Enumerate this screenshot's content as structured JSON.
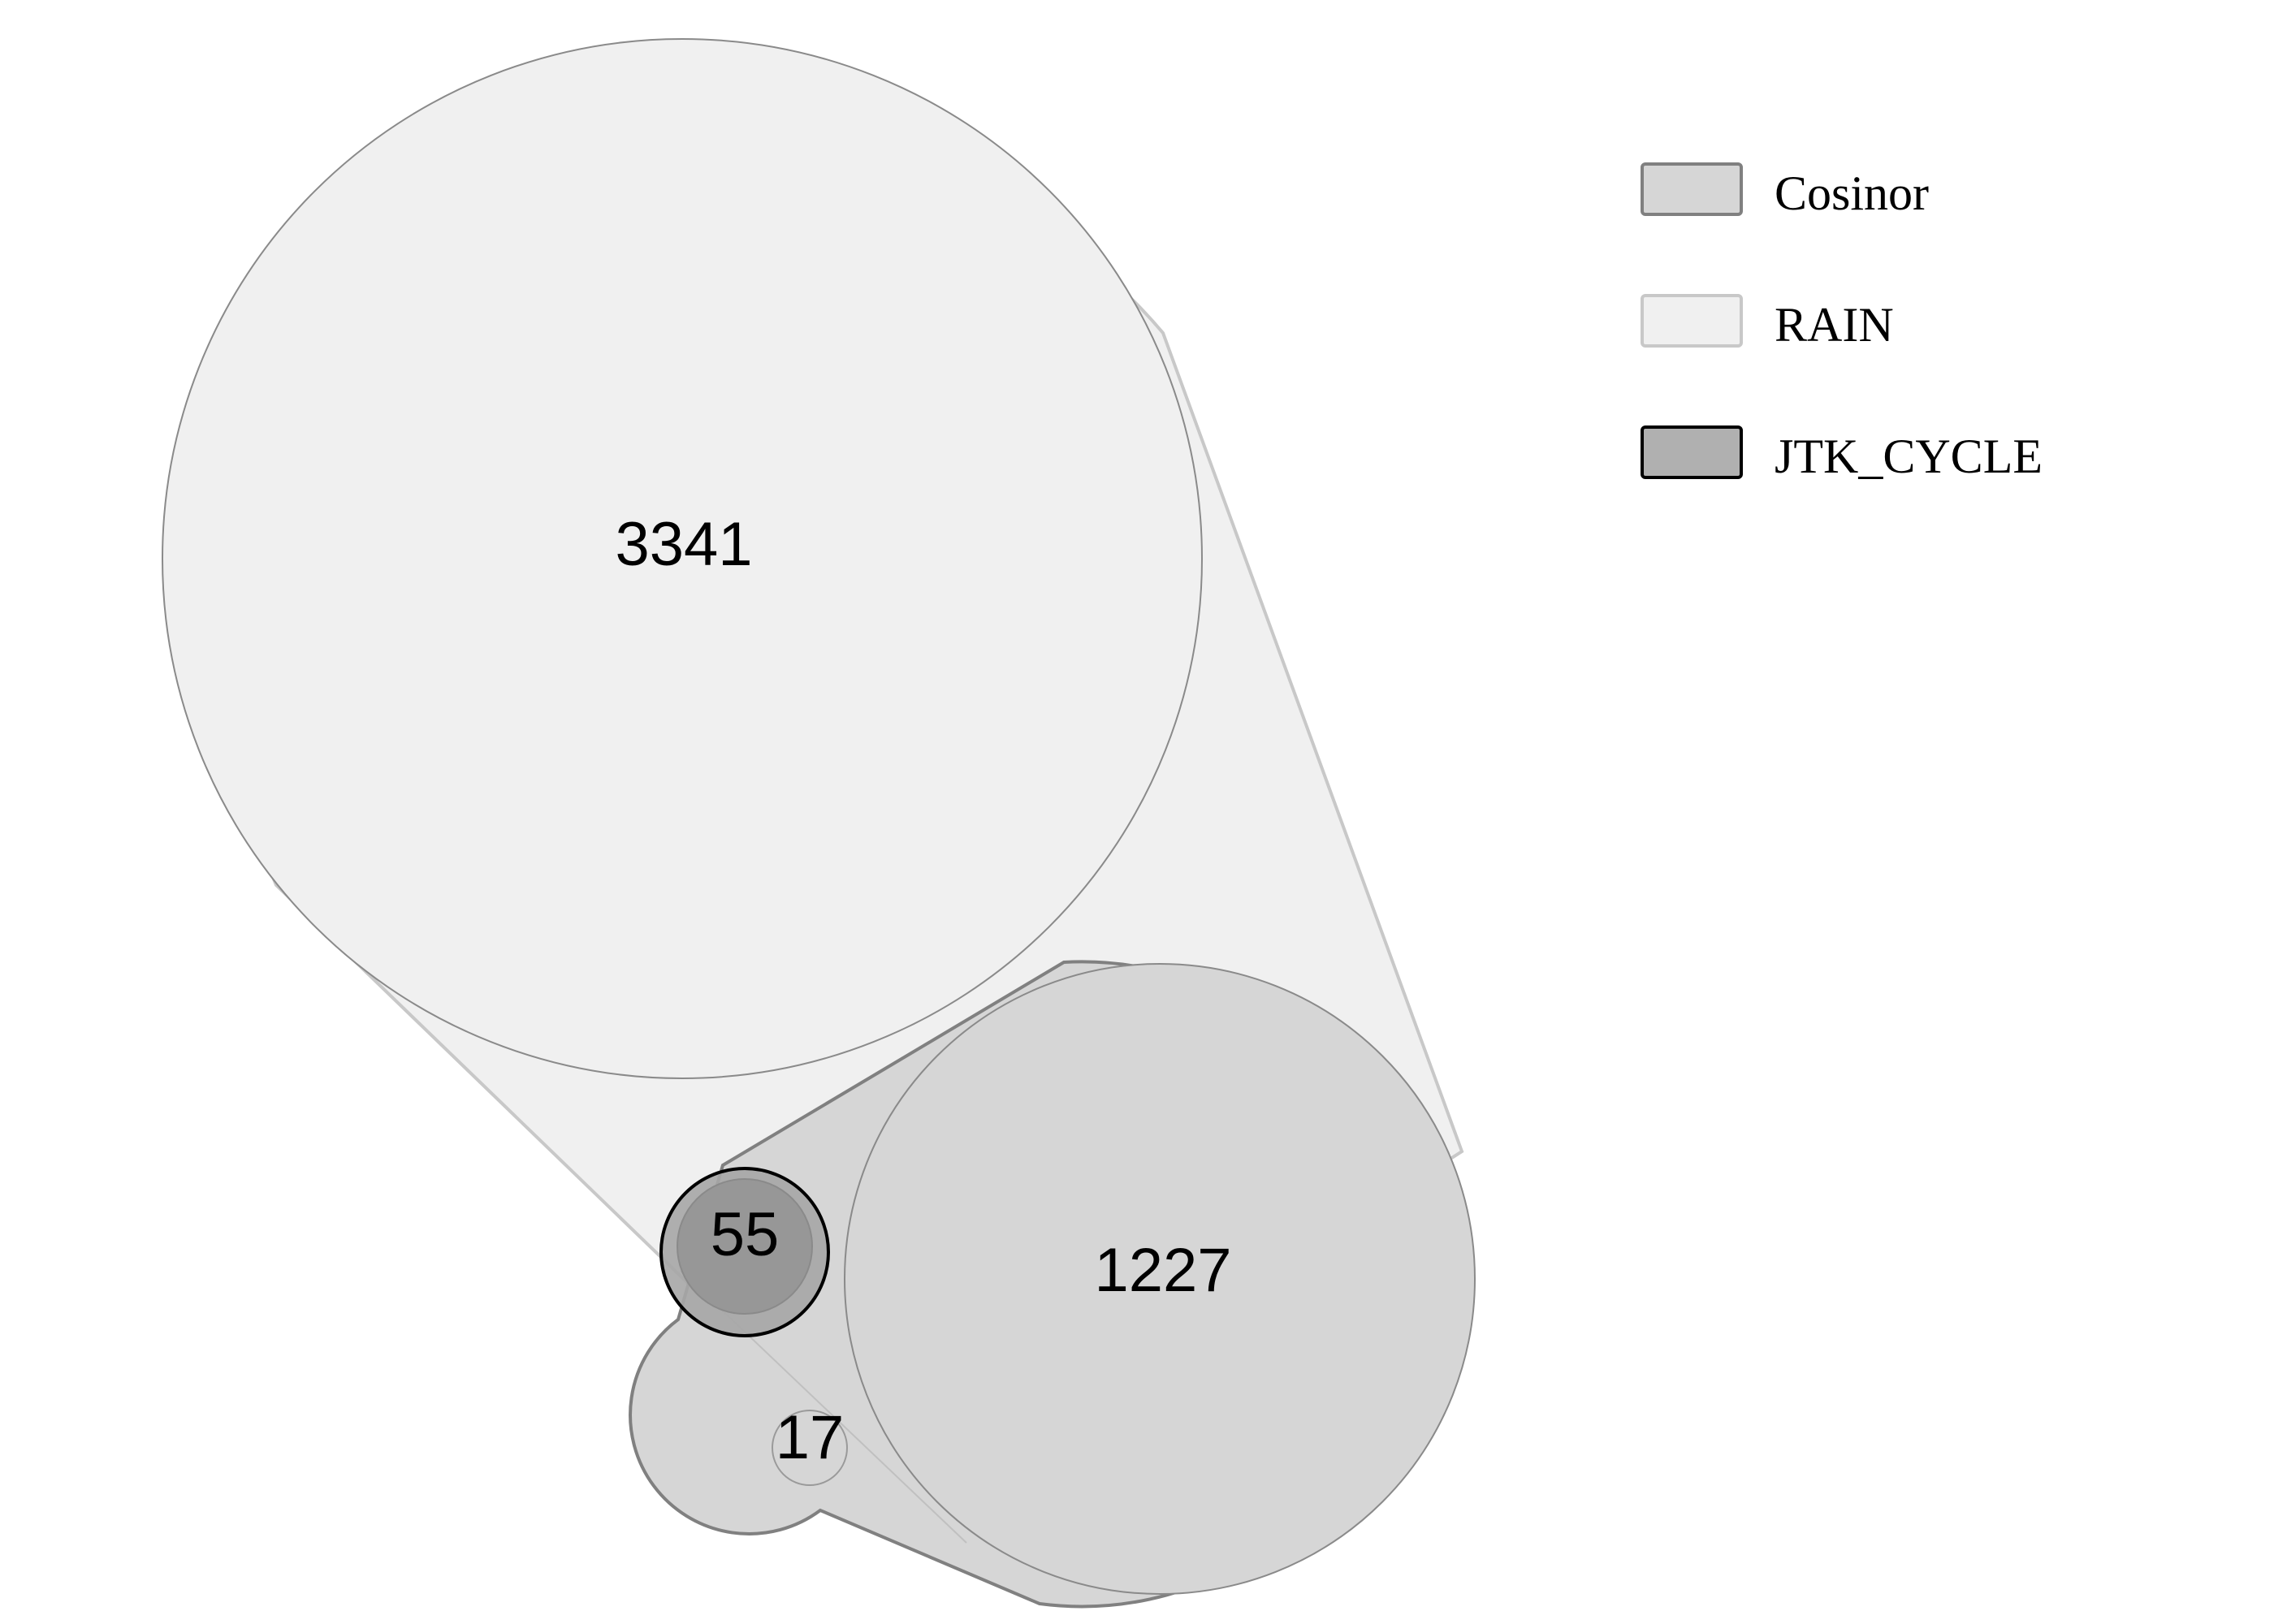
{
  "diagram": {
    "type": "euler",
    "sets": [
      {
        "key": "cosinor",
        "name": "Cosinor",
        "fill": "#d6d6d6",
        "stroke": "#808080"
      },
      {
        "key": "rain",
        "name": "RAIN",
        "fill": "#f0f0f0",
        "stroke": "#c8c8c8"
      },
      {
        "key": "jtk",
        "name": "JTK_CYCLE",
        "fill": "#b0b0b0",
        "stroke": "#000000"
      }
    ],
    "regions": [
      {
        "key": "rain_cosinor_only",
        "label": "3341"
      },
      {
        "key": "all_three",
        "label": "1227"
      },
      {
        "key": "jtk_overlap",
        "label": "55"
      },
      {
        "key": "small_overlap",
        "label": "17"
      }
    ]
  }
}
